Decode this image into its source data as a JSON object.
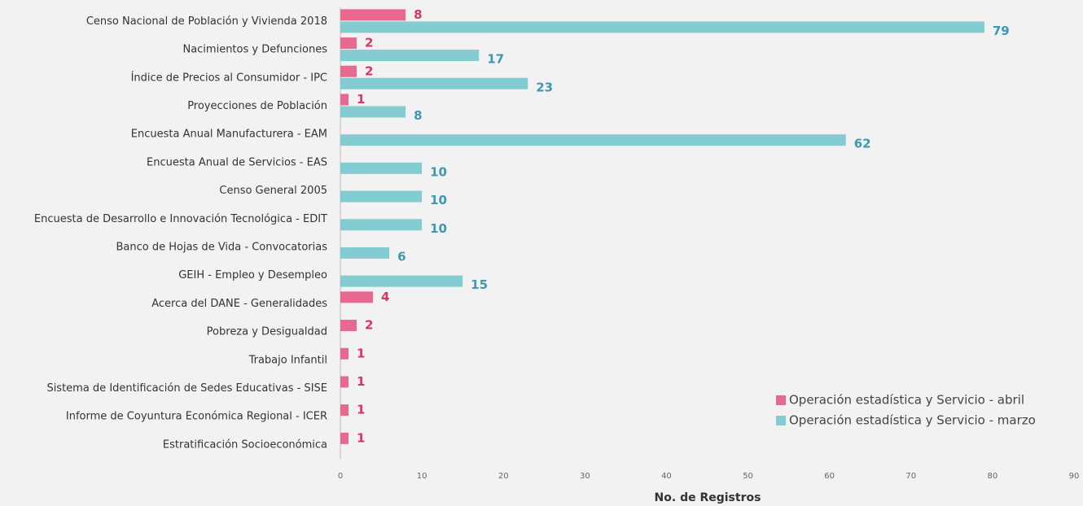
{
  "chart_data": {
    "type": "hbar",
    "categories": [
      "Censo Nacional de Población y Vivienda 2018",
      "Nacimientos y Defunciones",
      "Índice de Precios al Consumidor - IPC",
      "Proyecciones de Población",
      "Encuesta Anual Manufacturera - EAM",
      "Encuesta Anual de Servicios - EAS",
      "Censo General 2005",
      "Encuesta de Desarrollo e Innovación Tecnológica - EDIT",
      "Banco de Hojas de Vida - Convocatorias",
      "GEIH - Empleo y Desempleo",
      "Acerca del DANE - Generalidades",
      "Pobreza y Desigualdad",
      "Trabajo Infantil",
      "Sistema de Identificación de Sedes Educativas - SISE",
      "Informe de Coyuntura Económica Regional - ICER",
      "Estratificación Socioeconómica"
    ],
    "series": [
      {
        "name": "Operación estadística y Servicio - abril",
        "color": "#e8698f",
        "label_color": "#d9346a",
        "values": [
          8,
          2,
          2,
          1,
          null,
          null,
          null,
          null,
          null,
          null,
          4,
          2,
          1,
          1,
          1,
          1
        ]
      },
      {
        "name": "Operación estadística y Servicio - marzo",
        "color": "#82ccd2",
        "label_color": "#3d98b4",
        "values": [
          79,
          17,
          23,
          8,
          62,
          10,
          10,
          10,
          6,
          15,
          null,
          null,
          null,
          null,
          null,
          null
        ]
      }
    ],
    "xlabel": "No. de Registros",
    "xlim": [
      0,
      90
    ],
    "xticks": [
      0,
      10,
      20,
      30,
      40,
      50,
      60,
      70,
      80,
      90
    ],
    "legend": "lower right"
  }
}
